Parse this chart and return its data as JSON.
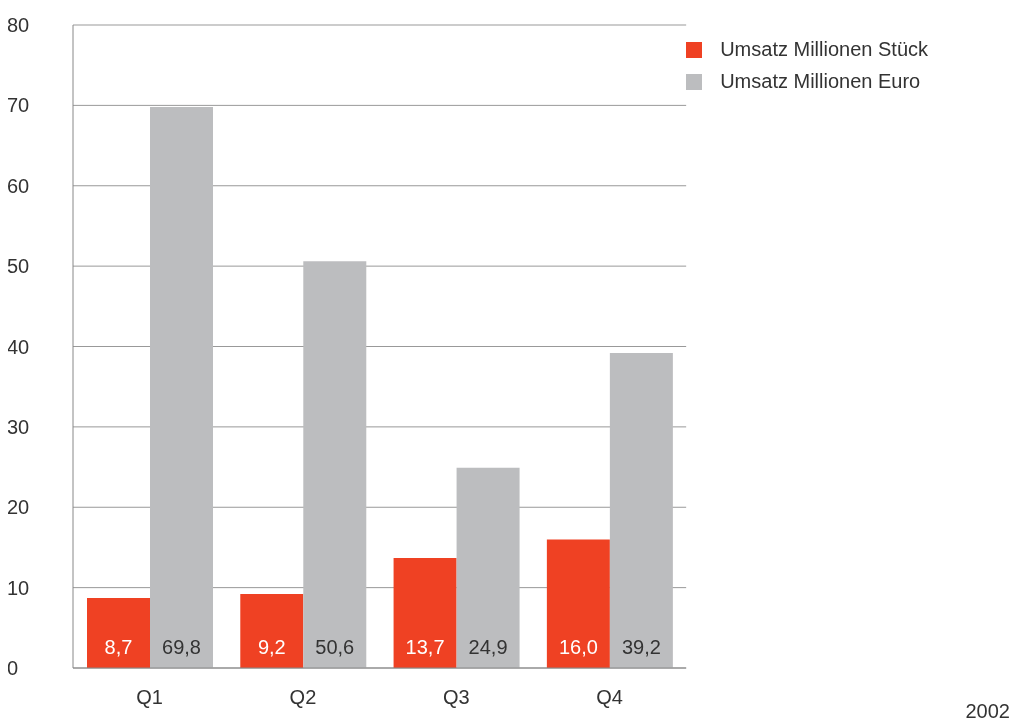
{
  "chart_data": {
    "type": "bar",
    "categories": [
      "Q1",
      "Q2",
      "Q3",
      "Q4"
    ],
    "series": [
      {
        "name": "Umsatz Millionen Stück",
        "color": "#ef4123",
        "values": [
          8.7,
          9.2,
          13.7,
          16.0
        ],
        "value_labels": [
          "8,7",
          "9,2",
          "13,7",
          "16,0"
        ]
      },
      {
        "name": "Umsatz Millionen Euro",
        "color": "#bcbdbf",
        "values": [
          69.8,
          50.6,
          24.9,
          39.2
        ],
        "value_labels": [
          "69,8",
          "50,6",
          "24,9",
          "39,2"
        ]
      }
    ],
    "ylim": [
      0,
      80
    ],
    "yticks": [
      0,
      10,
      20,
      30,
      40,
      50,
      60,
      70,
      80
    ],
    "grid": "y",
    "legend": "top right",
    "annotations": [
      "2002"
    ]
  }
}
